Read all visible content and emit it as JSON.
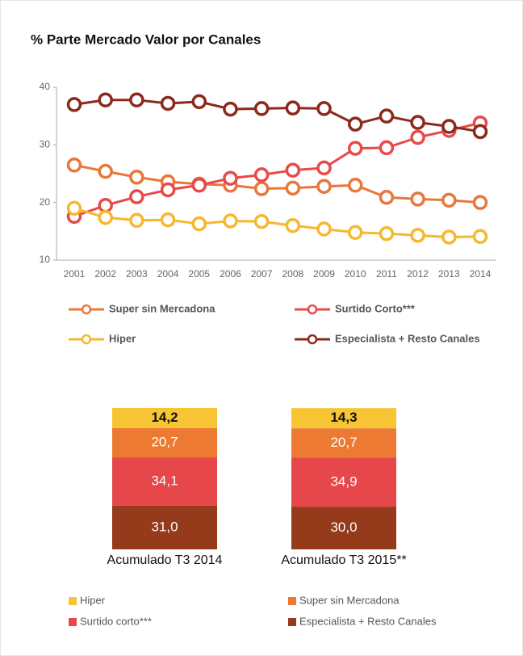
{
  "chart_data": [
    {
      "type": "line",
      "title": "% Parte Mercado Valor por Canales",
      "categories": [
        "2001",
        "2002",
        "2003",
        "2004",
        "2005",
        "2006",
        "2007",
        "2008",
        "2009",
        "2010",
        "2011",
        "2012",
        "2013",
        "2014"
      ],
      "ylim": [
        10,
        40
      ],
      "yticks": [
        10,
        20,
        30,
        40
      ],
      "series": [
        {
          "name": "Super sin Mercadona",
          "color": "#e8773a",
          "values": [
            26.5,
            25.4,
            24.4,
            23.6,
            23.2,
            23,
            22.4,
            22.5,
            22.8,
            23,
            20.9,
            20.6,
            20.4,
            20
          ]
        },
        {
          "name": "Surtido Corto***",
          "color": "#e84a4a",
          "values": [
            17.6,
            19.5,
            21,
            22.2,
            23,
            24.2,
            24.8,
            25.6,
            26,
            29.4,
            29.5,
            31.3,
            32.5,
            33.8
          ]
        },
        {
          "name": "Hiper",
          "color": "#f5b82e",
          "values": [
            19,
            17.4,
            16.9,
            17,
            16.3,
            16.8,
            16.7,
            16,
            15.4,
            14.8,
            14.6,
            14.3,
            14,
            14.1
          ]
        },
        {
          "name": "Especialista + Resto Canales",
          "color": "#8b2a1a",
          "values": [
            37,
            37.8,
            37.8,
            37.2,
            37.5,
            36.2,
            36.3,
            36.4,
            36.3,
            33.6,
            35,
            33.9,
            33.2,
            32.3
          ]
        }
      ]
    },
    {
      "type": "bar",
      "stacked": true,
      "categories": [
        "Acumulado T3 2014",
        "Acumulado T3 2015**"
      ],
      "series": [
        {
          "name": "Hiper",
          "color": "#f7c433",
          "values": [
            14.2,
            14.3
          ],
          "value_labels": [
            "14,2",
            "14,3"
          ]
        },
        {
          "name": "Super sin Mercadona",
          "color": "#ec7a32",
          "values": [
            20.7,
            20.7
          ],
          "value_labels": [
            "20,7",
            "20,7"
          ]
        },
        {
          "name": "Surtido corto***",
          "color": "#e5474a",
          "values": [
            34.1,
            34.9
          ],
          "value_labels": [
            "34,1",
            "34,9"
          ]
        },
        {
          "name": "Especialista + Resto Canales",
          "color": "#953a1a",
          "values": [
            31.0,
            30.0
          ],
          "value_labels": [
            "31,0",
            "30,0"
          ]
        }
      ]
    }
  ]
}
